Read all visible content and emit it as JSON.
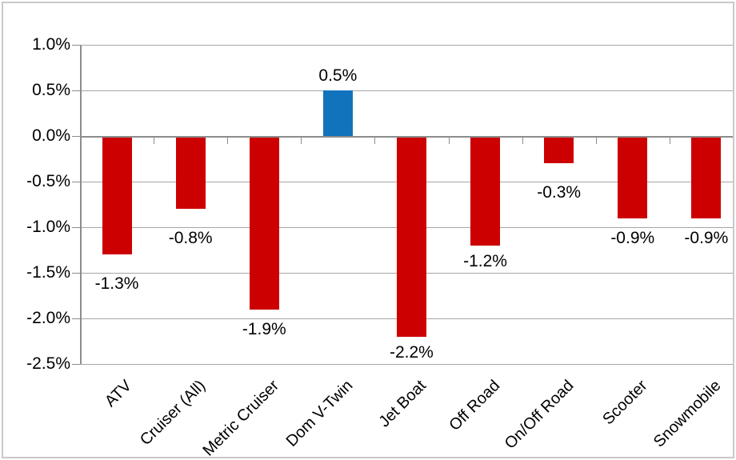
{
  "frame": {
    "background_color": "#FFFFFF",
    "border_color": "#C9C9C9"
  },
  "chart_data": {
    "type": "bar",
    "title": "",
    "xlabel": "",
    "ylabel": "",
    "categories": [
      "ATV",
      "Cruiser (All)",
      "Metric Cruiser",
      "Dom V-Twin",
      "Jet Boat",
      "Off Road",
      "On/Off Road",
      "Scooter",
      "Snowmobile"
    ],
    "values": [
      -1.3,
      -0.8,
      -1.9,
      0.5,
      -2.2,
      -1.2,
      -0.3,
      -0.9,
      -0.9
    ],
    "data_labels": [
      "-1.3%",
      "-0.8%",
      "-1.9%",
      "0.5%",
      "-2.2%",
      "-1.2%",
      "-0.3%",
      "-0.9%",
      "-0.9%"
    ],
    "ylim": [
      -2.5,
      1.0
    ],
    "ytick_step": 0.5,
    "ytick_labels": [
      "1.0%",
      "0.5%",
      "0.0%",
      "-0.5%",
      "-1.0%",
      "-1.5%",
      "-2.0%",
      "-2.5%"
    ],
    "ytick_values": [
      1.0,
      0.5,
      0.0,
      -0.5,
      -1.0,
      -1.5,
      -2.0,
      -2.5
    ],
    "grid": true,
    "legend_position": "none",
    "colors": {
      "positive_bar": "#1273BD",
      "negative_bar": "#CC0000",
      "gridline": "#A6A6A6",
      "axis": "#8C8C8C",
      "label": "#000000"
    }
  }
}
